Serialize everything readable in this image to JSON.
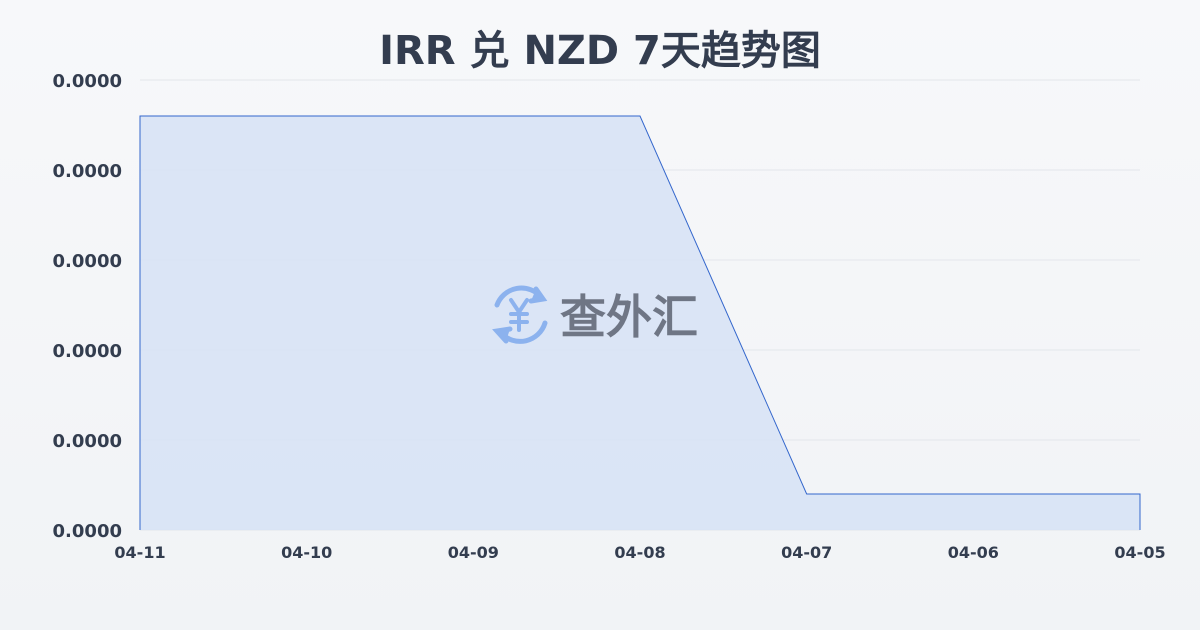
{
  "chart_data": {
    "type": "area",
    "title": "IRR 兑 NZD 7天趋势图",
    "categories": [
      "04-11",
      "04-10",
      "04-09",
      "04-08",
      "04-07",
      "04-06",
      "04-05"
    ],
    "values": [
      3.892e-05,
      3.892e-05,
      3.892e-05,
      3.892e-05,
      3.808e-05,
      3.808e-05,
      3.808e-05
    ],
    "ylim": [
      3.8e-05,
      3.9e-05
    ],
    "yticks": [
      3.8e-05,
      3.82e-05,
      3.84e-05,
      3.86e-05,
      3.88e-05,
      3.9e-05
    ],
    "tick_decimals": 4,
    "grid": true,
    "colors": {
      "line": "#3366cc",
      "fill": "#d6e2f6"
    }
  },
  "watermark": {
    "text": "查外汇",
    "icon": "yen-exchange-icon"
  }
}
